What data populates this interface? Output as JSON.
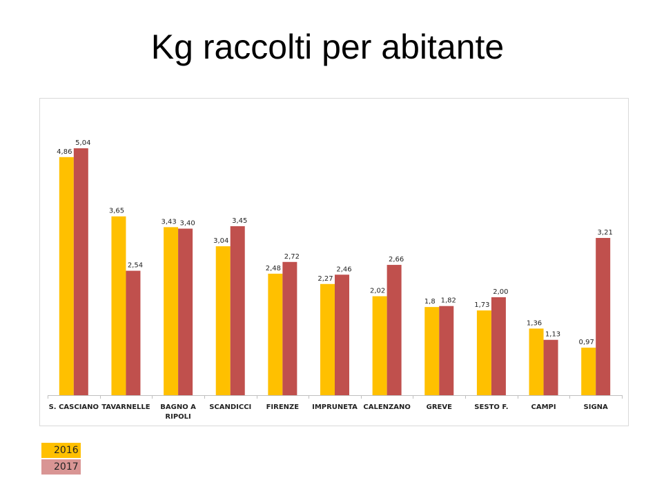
{
  "title": "Kg raccolti per abitante",
  "chart_data": {
    "type": "bar",
    "categories": [
      "S. CASCIANO",
      "TAVARNELLE",
      "BAGNO A RIPOLI",
      "SCANDICCI",
      "FIRENZE",
      "IMPRUNETA",
      "CALENZANO",
      "GREVE",
      "SESTO F.",
      "CAMPI",
      "SIGNA"
    ],
    "category_lines": [
      [
        "S. CASCIANO"
      ],
      [
        "TAVARNELLE"
      ],
      [
        "BAGNO A",
        "RIPOLI"
      ],
      [
        "SCANDICCI"
      ],
      [
        "FIRENZE"
      ],
      [
        "IMPRUNETA"
      ],
      [
        "CALENZANO"
      ],
      [
        "GREVE"
      ],
      [
        "SESTO F."
      ],
      [
        "CAMPI"
      ],
      [
        "SIGNA"
      ]
    ],
    "series": [
      {
        "name": "2016",
        "color": "#FFC000",
        "legend_color": "#FFC000",
        "values": [
          4.86,
          3.65,
          3.43,
          3.04,
          2.48,
          2.27,
          2.02,
          1.8,
          1.73,
          1.36,
          0.97
        ],
        "labels": [
          "4,86",
          "3,65",
          "3,43",
          "3,04",
          "2,48",
          "2,27",
          "2,02",
          "1,8",
          "1,73",
          "1,36",
          "0,97"
        ]
      },
      {
        "name": "2017",
        "color": "#C0504D",
        "legend_color": "#D99594",
        "values": [
          5.04,
          2.54,
          3.4,
          3.45,
          2.72,
          2.46,
          2.66,
          1.82,
          2.0,
          1.13,
          3.21
        ],
        "labels": [
          "5,04",
          "2,54",
          "3,40",
          "3,45",
          "2,72",
          "2,46",
          "2,66",
          "1,82",
          "2,00",
          "1,13",
          "3,21"
        ]
      }
    ],
    "ylim": [
      0,
      5.5
    ],
    "grid": false,
    "legend": "bottom-left"
  }
}
